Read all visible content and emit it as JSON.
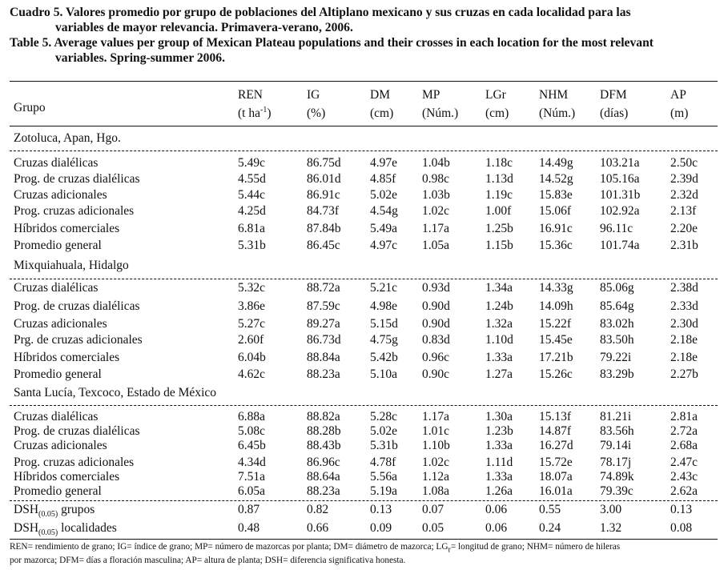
{
  "caption": {
    "es_line1": "Cuadro 5. Valores promedio por grupo de poblaciones del Altiplano mexicano y sus cruzas en cada localidad para las",
    "es_line2": "variables de mayor relevancia. Primavera-verano, 2006.",
    "en_line1": "Table 5. Average values per group of Mexican Plateau populations and their crosses in each location for the most relevant",
    "en_line2": "variables. Spring-summer 2006."
  },
  "header": {
    "group_label": "Grupo",
    "columns": [
      {
        "name": "REN",
        "unit_pre": "(t ha",
        "unit_sup": "-1",
        "unit_post": ")"
      },
      {
        "name": "IG",
        "unit_pre": "(%)",
        "unit_sup": "",
        "unit_post": ""
      },
      {
        "name": "DM",
        "unit_pre": "(cm)",
        "unit_sup": "",
        "unit_post": ""
      },
      {
        "name": "MP",
        "unit_pre": "(Núm.)",
        "unit_sup": "",
        "unit_post": ""
      },
      {
        "name": "LGr",
        "unit_pre": "(cm)",
        "unit_sup": "",
        "unit_post": ""
      },
      {
        "name": "NHM",
        "unit_pre": "(Núm.)",
        "unit_sup": "",
        "unit_post": ""
      },
      {
        "name": "DFM",
        "unit_pre": "(días)",
        "unit_sup": "",
        "unit_post": ""
      },
      {
        "name": "AP",
        "unit_pre": "(m)",
        "unit_sup": "",
        "unit_post": ""
      }
    ]
  },
  "sections": [
    {
      "title": "Zotoluca, Apan, Hgo.",
      "rows": [
        {
          "label": "Cruzas dialélicas",
          "values": [
            "5.49c",
            "86.75d",
            "4.97e",
            "1.04b",
            "1.18c",
            "14.49g",
            "103.21a",
            "2.50c"
          ]
        },
        {
          "label": "Prog. de cruzas dialélicas",
          "values": [
            "4.55d",
            "86.01d",
            "4.85f",
            "0.98c",
            "1.13d",
            "14.52g",
            "105.16a",
            "2.39d"
          ]
        },
        {
          "label": "Cruzas adicionales",
          "values": [
            "5.44c",
            "86.91c",
            "5.02e",
            "1.03b",
            "1.19c",
            "15.83e",
            "101.31b",
            "2.32d"
          ]
        },
        {
          "label": "Prog. cruzas adicionales",
          "values": [
            "4.25d",
            "84.73f",
            "4.54g",
            "1.02c",
            "1.00f",
            "15.06f",
            "102.92a",
            "2.13f"
          ]
        },
        {
          "label": "Híbridos comerciales",
          "values": [
            "6.81a",
            "87.84b",
            "5.49a",
            "1.17a",
            "1.25b",
            "16.91c",
            "96.11c",
            "2.20e"
          ]
        },
        {
          "label": "Promedio general",
          "values": [
            "5.31b",
            "86.45c",
            "4.97c",
            "1.05a",
            "1.15b",
            "15.36c",
            "101.74a",
            "2.31b"
          ]
        }
      ]
    },
    {
      "title": "Mixquiahuala, Hidalgo",
      "rows": [
        {
          "label": "Cruzas dialélicas",
          "values": [
            "5.32c",
            "88.72a",
            "5.21c",
            "0.93d",
            "1.34a",
            "14.33g",
            "85.06g",
            "2.38d"
          ]
        },
        {
          "label": "Prog. de cruzas dialélicas",
          "values": [
            "3.86e",
            "87.59c",
            "4.98e",
            "0.90d",
            "1.24b",
            "14.09h",
            "85.64g",
            "2.33d"
          ]
        },
        {
          "label": "Cruzas adicionales",
          "values": [
            "5.27c",
            "89.27a",
            "5.15d",
            "0.90d",
            "1.32a",
            "15.22f",
            "83.02h",
            "2.30d"
          ]
        },
        {
          "label": "Prg. de cruzas adicionales",
          "values": [
            "2.60f",
            "86.73d",
            "4.75g",
            "0.83d",
            "1.10d",
            "15.45e",
            "83.50h",
            "2.18e"
          ]
        },
        {
          "label": "Híbridos comerciales",
          "values": [
            "6.04b",
            "88.84a",
            "5.42b",
            "0.96c",
            "1.33a",
            "17.21b",
            "79.22i",
            "2.18e"
          ]
        },
        {
          "label": "Promedio general",
          "values": [
            "4.62c",
            "88.23a",
            "5.10a",
            "0.90c",
            "1.27a",
            "15.26c",
            "83.29b",
            "2.27b"
          ]
        }
      ]
    },
    {
      "title": "Santa Lucía, Texcoco, Estado de México",
      "rows": [
        {
          "label": "Cruzas dialélicas",
          "values": [
            "6.88a",
            "88.82a",
            "5.28c",
            "1.17a",
            "1.30a",
            "15.13f",
            "81.21i",
            "2.81a"
          ]
        },
        {
          "label": "Prog. de cruzas dialélicas",
          "values": [
            "5.08c",
            "88.28b",
            "5.02e",
            "1.01c",
            "1.23b",
            "14.87f",
            "83.56h",
            "2.72a"
          ]
        },
        {
          "label": "Cruzas adicionales",
          "values": [
            "6.45b",
            "88.43b",
            "5.31b",
            "1.10b",
            "1.33a",
            "16.27d",
            "79.14i",
            "2.68a"
          ]
        },
        {
          "label": "Prog. cruzas adicionales",
          "values": [
            "4.34d",
            "86.96c",
            "4.78f",
            "1.02c",
            "1.11d",
            "15.72e",
            "78.17j",
            "2.47c"
          ]
        },
        {
          "label": "Híbridos comerciales",
          "values": [
            "7.51a",
            "88.64a",
            "5.56a",
            "1.12a",
            "1.33a",
            "18.07a",
            "74.89k",
            "2.43c"
          ]
        },
        {
          "label": "Promedio general",
          "values": [
            "6.05a",
            "88.23a",
            "5.19a",
            "1.08a",
            "1.26a",
            "16.01a",
            "79.39c",
            "2.62a"
          ]
        }
      ]
    }
  ],
  "dsh": [
    {
      "label_pre": "DSH",
      "label_sub": "(0.05)",
      "label_post": " grupos",
      "values": [
        "0.87",
        "0.82",
        "0.13",
        "0.07",
        "0.06",
        "0.55",
        "3.00",
        "0.13"
      ]
    },
    {
      "label_pre": "DSH",
      "label_sub": "(0.05)",
      "label_post": " localidades",
      "values": [
        "0.48",
        "0.66",
        "0.09",
        "0.05",
        "0.06",
        "0.24",
        "1.32",
        "0.08"
      ]
    }
  ],
  "footnote": {
    "line1_pre": "REN= rendimiento de grano; IG= índice de grano; MP= número de mazorcas por planta; DM= diámetro de mazorca; LG",
    "line1_sub": "r",
    "line1_post": "= longitud de grano; NHM= número de hileras",
    "line2": "por mazorca; DFM= días a floración masculina; AP= altura de planta; DSH= diferencia significativa honesta."
  }
}
